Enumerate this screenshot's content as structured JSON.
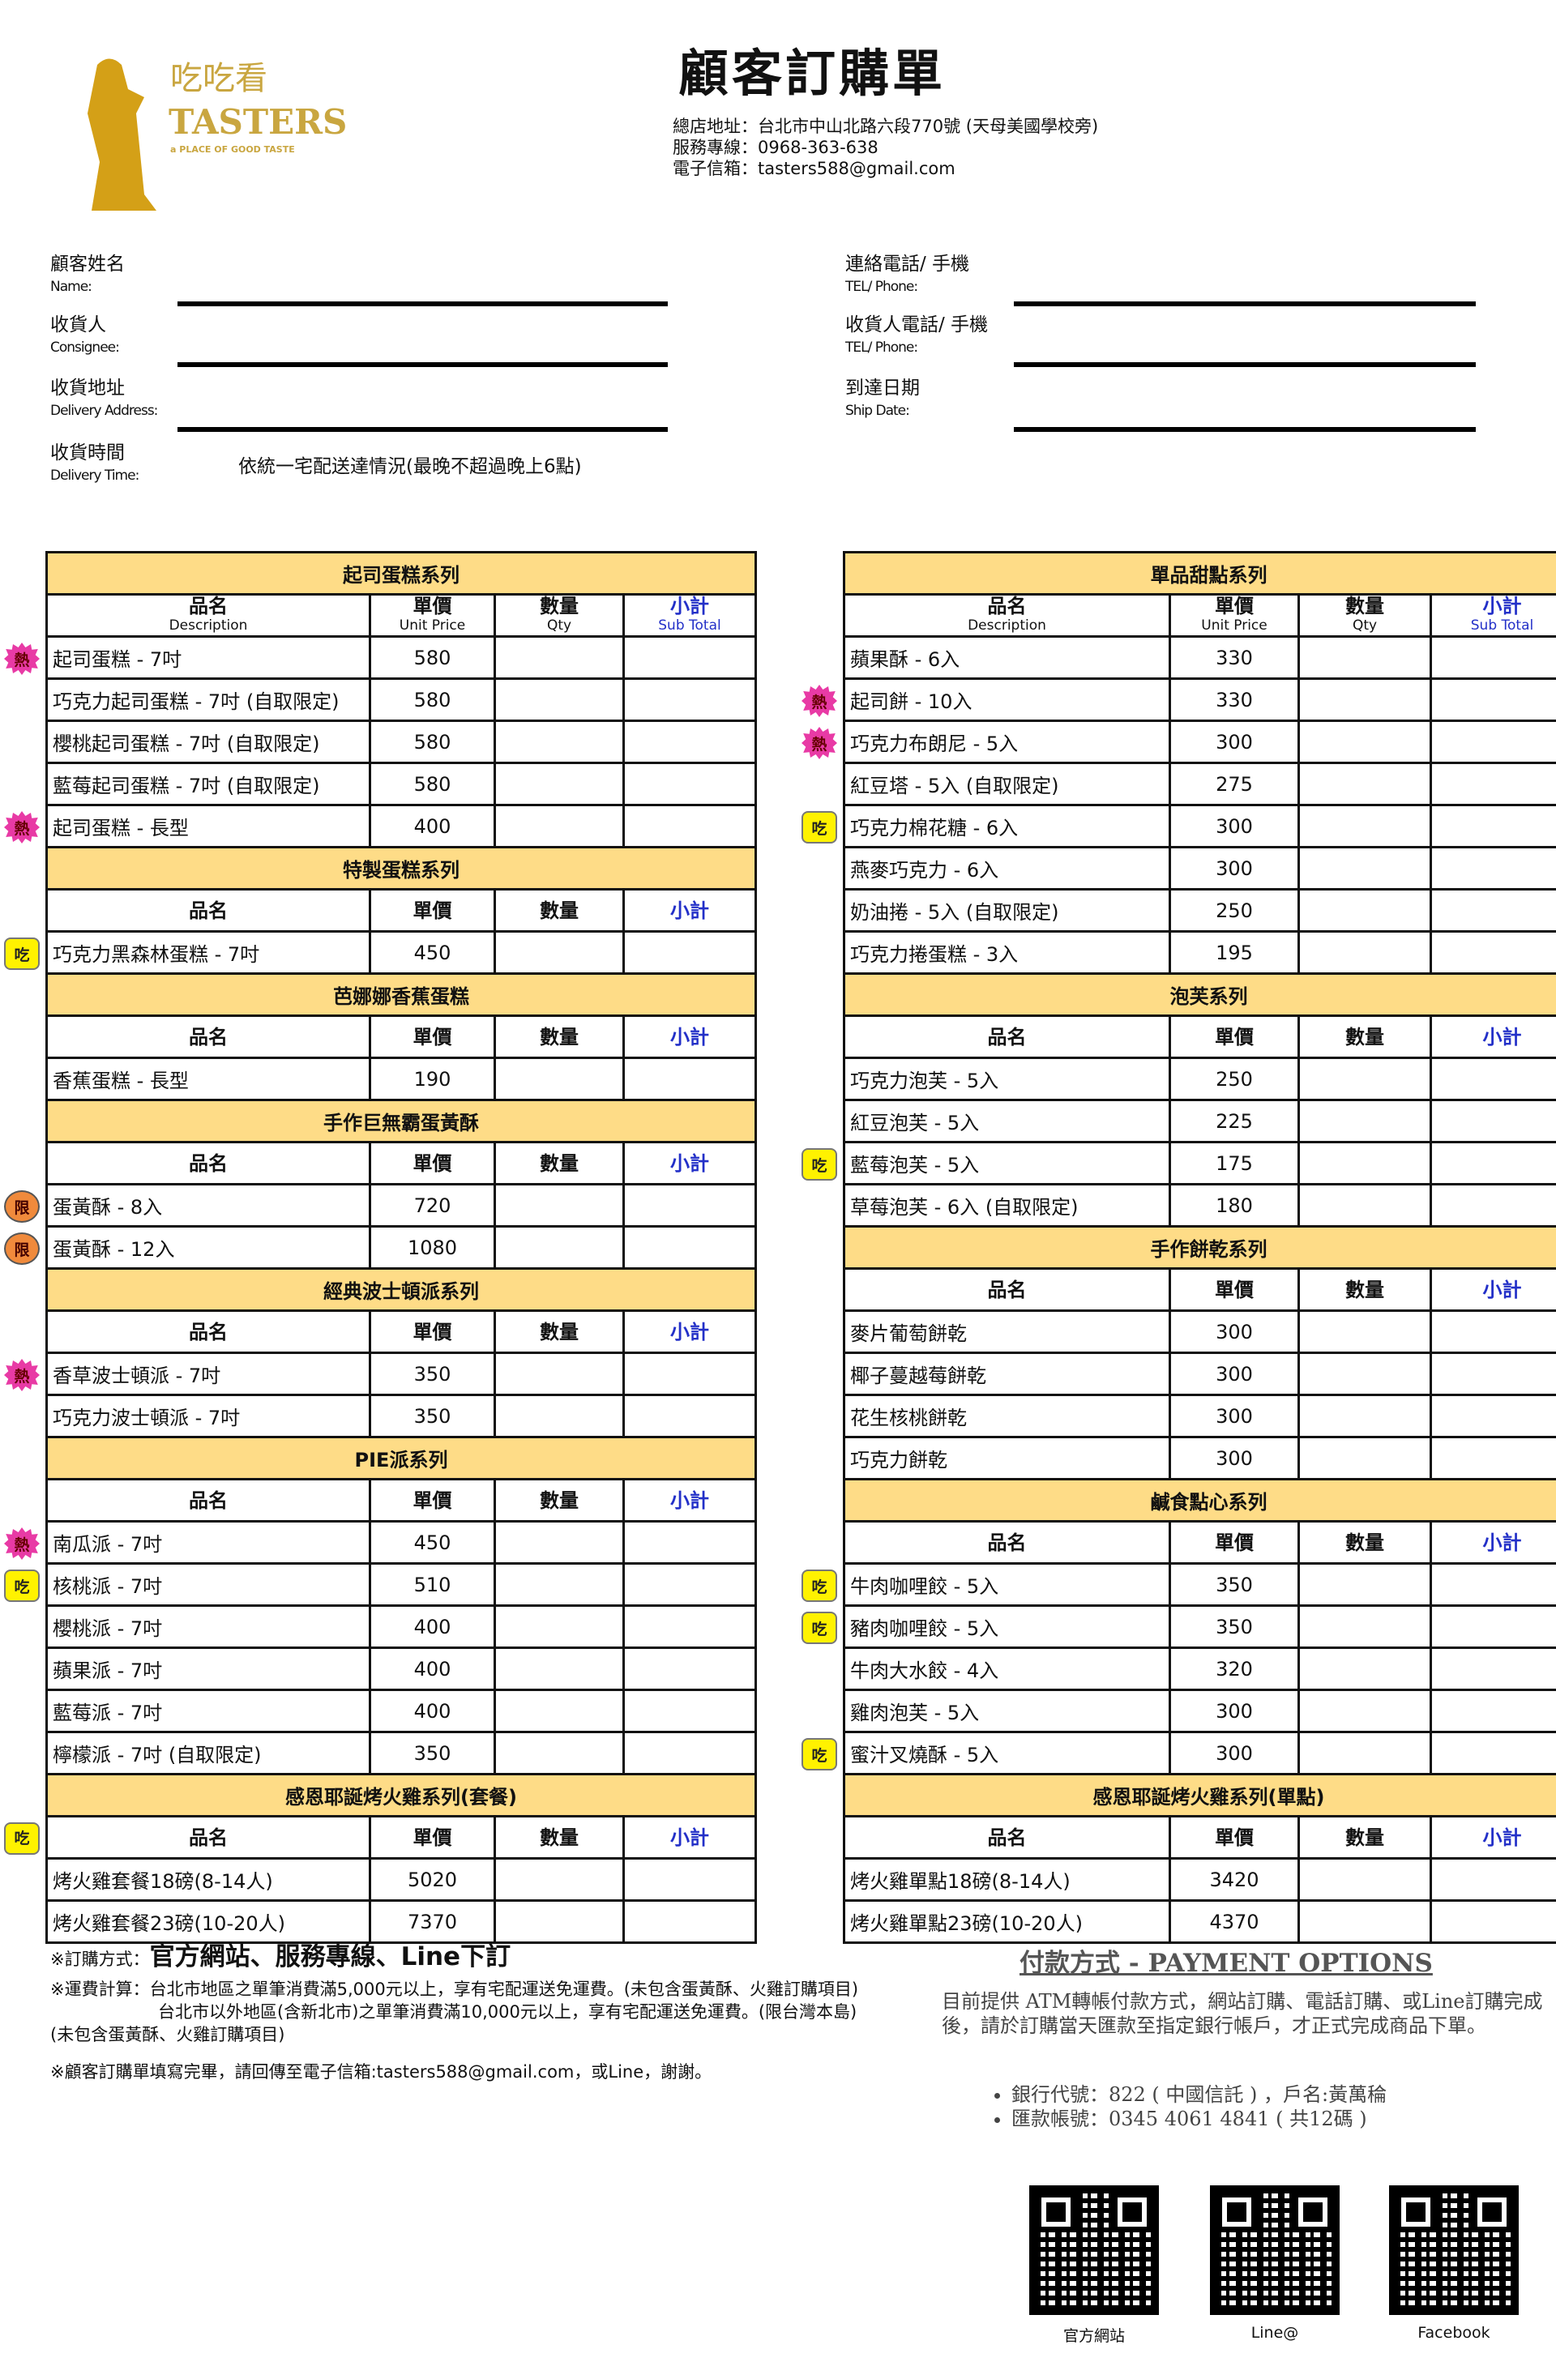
{
  "header": {
    "logo_cn": "吃吃看",
    "logo_en": "TASTERS",
    "logo_tag": "a PLACE OF GOOD TASTE",
    "title": "顧客訂購單",
    "address": "總店地址：台北市中山北路六段770號 (天母美國學校旁)",
    "hotline": "服務專線：0968-363-638",
    "email": "電子信箱：tasters588@gmail.com"
  },
  "form": {
    "name_cn": "顧客姓名",
    "name_en": "Name:",
    "consignee_cn": "收貨人",
    "consignee_en": "Consignee:",
    "address_cn": "收貨地址",
    "address_en": "Delivery Address:",
    "time_cn": "收貨時間",
    "time_en": "Delivery Time:",
    "time_value": "依統一宅配送達情況(最晚不超過晚上6點)",
    "phone_cn": "連絡電話/ 手機",
    "phone_en": "TEL/ Phone:",
    "cphone_cn": "收貨人電話/ 手機",
    "cphone_en": "TEL/ Phone:",
    "date_cn": "到達日期",
    "date_en": "Ship Date:"
  },
  "columns": {
    "desc": "品名",
    "desc_en": "Description",
    "price": "單價",
    "price_en": "Unit Price",
    "qty": "數量",
    "qty_en": "Qty",
    "sub": "小計",
    "sub_en": "Sub Total"
  },
  "badges": {
    "hot": "熱",
    "eat": "吃",
    "lim": "限"
  },
  "colors": {
    "section_bg": "#fedc87",
    "subtotal_text": "#2330c8",
    "hot": "#e83aa5",
    "eat": "#fff200",
    "lim": "#f08a3c"
  },
  "left_sections": [
    {
      "title": "起司蛋糕系列",
      "bilingual": true,
      "items": [
        {
          "name": "起司蛋糕 - 7吋",
          "price": "580",
          "badge": "hot"
        },
        {
          "name": "巧克力起司蛋糕 - 7吋 (自取限定)",
          "price": "580"
        },
        {
          "name": "櫻桃起司蛋糕 - 7吋 (自取限定)",
          "price": "580"
        },
        {
          "name": "藍莓起司蛋糕 - 7吋 (自取限定)",
          "price": "580"
        },
        {
          "name": "起司蛋糕 - 長型",
          "price": "400",
          "badge": "hot"
        }
      ]
    },
    {
      "title": "特製蛋糕系列",
      "items": [
        {
          "name": "巧克力黑森林蛋糕 - 7吋",
          "price": "450",
          "badge": "eat"
        }
      ]
    },
    {
      "title": "芭娜娜香蕉蛋糕",
      "items": [
        {
          "name": "香蕉蛋糕 - 長型",
          "price": "190"
        }
      ]
    },
    {
      "title": "手作巨無霸蛋黃酥",
      "items": [
        {
          "name": "蛋黃酥 - 8入",
          "price": "720",
          "badge": "lim"
        },
        {
          "name": "蛋黃酥 - 12入",
          "price": "1080",
          "badge": "lim"
        }
      ]
    },
    {
      "title": "經典波士頓派系列",
      "items": [
        {
          "name": "香草波士頓派 - 7吋",
          "price": "350",
          "badge": "hot"
        },
        {
          "name": "巧克力波士頓派 - 7吋",
          "price": "350"
        }
      ]
    },
    {
      "title": "PIE派系列",
      "items": [
        {
          "name": "南瓜派 - 7吋",
          "price": "450",
          "badge": "hot"
        },
        {
          "name": "核桃派 - 7吋",
          "price": "510",
          "badge": "eat"
        },
        {
          "name": "櫻桃派 - 7吋",
          "price": "400"
        },
        {
          "name": "蘋果派 - 7吋",
          "price": "400"
        },
        {
          "name": "藍莓派 - 7吋",
          "price": "400"
        },
        {
          "name": "檸檬派 - 7吋 (自取限定)",
          "price": "350"
        }
      ]
    },
    {
      "title": "感恩耶誕烤火雞系列(套餐)",
      "header_badge": "eat",
      "indent": true,
      "items": [
        {
          "name": "烤火雞套餐18磅(8-14人)",
          "price": "5020"
        },
        {
          "name": "烤火雞套餐23磅(10-20人)",
          "price": "7370"
        }
      ]
    }
  ],
  "right_sections": [
    {
      "title": "單品甜點系列",
      "bilingual": true,
      "items": [
        {
          "name": "蘋果酥 - 6入",
          "price": "330"
        },
        {
          "name": "起司餅 - 10入",
          "price": "330",
          "badge": "hot"
        },
        {
          "name": "巧克力布朗尼 - 5入",
          "price": "300",
          "badge": "hot"
        },
        {
          "name": "紅豆塔 - 5入 (自取限定)",
          "price": "275"
        },
        {
          "name": "巧克力棉花糖 - 6入",
          "price": "300",
          "badge": "eat"
        },
        {
          "name": "燕麥巧克力 - 6入",
          "price": "300"
        },
        {
          "name": "奶油捲 - 5入 (自取限定)",
          "price": "250"
        },
        {
          "name": "巧克力捲蛋糕 - 3入",
          "price": "195"
        }
      ]
    },
    {
      "title": "泡芙系列",
      "items": [
        {
          "name": "巧克力泡芙 - 5入",
          "price": "250"
        },
        {
          "name": "紅豆泡芙 - 5入",
          "price": "225"
        },
        {
          "name": "藍莓泡芙 - 5入",
          "price": "175",
          "badge": "eat"
        },
        {
          "name": "草莓泡芙 - 6入 (自取限定)",
          "price": "180"
        }
      ]
    },
    {
      "title": "手作餅乾系列",
      "items": [
        {
          "name": "麥片葡萄餅乾",
          "price": "300"
        },
        {
          "name": "椰子蔓越莓餅乾",
          "price": "300"
        },
        {
          "name": "花生核桃餅乾",
          "price": "300"
        },
        {
          "name": "巧克力餅乾",
          "price": "300"
        }
      ]
    },
    {
      "title": "鹹食點心系列",
      "items": [
        {
          "name": "牛肉咖哩餃 - 5入",
          "price": "350",
          "badge": "eat"
        },
        {
          "name": "豬肉咖哩餃 - 5入",
          "price": "350",
          "badge": "eat"
        },
        {
          "name": "牛肉大水餃 - 4入",
          "price": "320"
        },
        {
          "name": "雞肉泡芙 - 5入",
          "price": "300"
        },
        {
          "name": "蜜汁叉燒酥 - 5入",
          "price": "300",
          "badge": "eat"
        }
      ]
    },
    {
      "title": "感恩耶誕烤火雞系列(單點)",
      "items": [
        {
          "name": "烤火雞單點18磅(8-14人)",
          "price": "3420"
        },
        {
          "name": "烤火雞單點23磅(10-20人)",
          "price": "4370"
        }
      ]
    }
  ],
  "notes": {
    "order_prefix": "※訂購方式：",
    "order_methods": "官方網站、服務專線、Line下訂",
    "shipping_1": "※運費計算：台北市地區之單筆消費滿5,000元以上，享有宅配運送免運費。(未包含蛋黃酥、火雞訂購項目)",
    "shipping_2": "台北市以外地區(含新北市)之單筆消費滿10,000元以上，享有宅配運送免運費。(限台灣本島)",
    "shipping_3": "(未包含蛋黃酥、火雞訂購項目)",
    "return": "※顧客訂購單填寫完畢，請回傳至電子信箱:tasters588@gmail.com，或Line，謝謝。"
  },
  "payment": {
    "title": "付款方式 - PAYMENT OPTIONS",
    "text": "目前提供 ATM轉帳付款方式，網站訂購、電話訂購、或Line訂購完成後，請於訂購當天匯款至指定銀行帳戶，才正式完成商品下單。",
    "bank": "銀行代號：822 ( 中國信託 ) ，戶名:黃萬稐",
    "account": "匯款帳號：0345 4061 4841 ( 共12碼 )"
  },
  "qr": [
    {
      "label": "官方網站"
    },
    {
      "label": "Line@"
    },
    {
      "label": "Facebook"
    }
  ]
}
